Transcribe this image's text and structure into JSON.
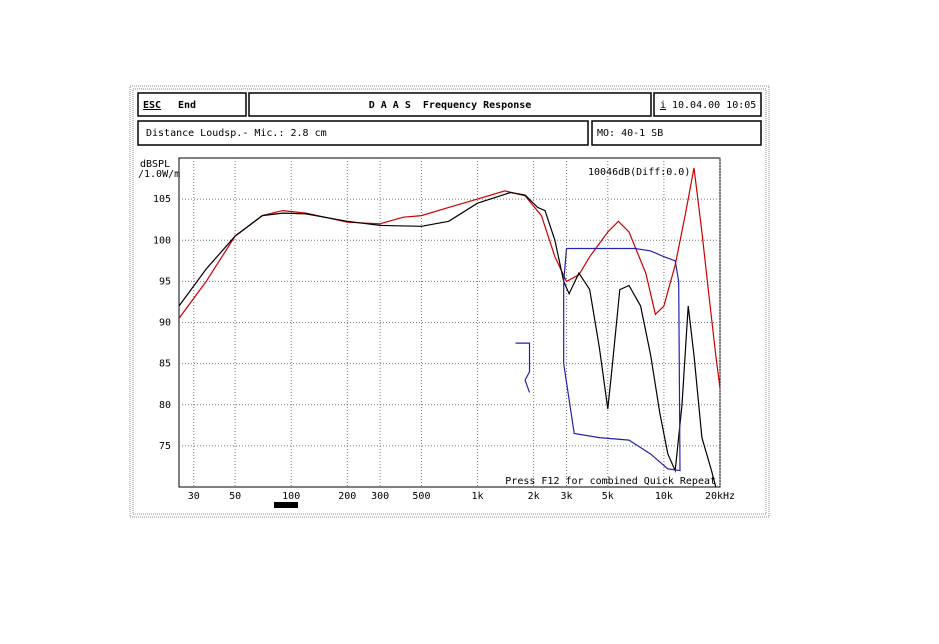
{
  "header": {
    "esc": "ESC",
    "end": "End",
    "title": "D A A S  Frequency Response",
    "info": "i",
    "date": "10.04.00 10:05",
    "distance": "Distance Loudsp.- Mic.: 2.8 cm",
    "model": "MO: 40-1 SB"
  },
  "chart_data": {
    "type": "line",
    "y_label_1": "dBSPL",
    "y_label_2": "/1.0W/m",
    "top_note": "10046dB(Diff:0.0)",
    "annotation": "Press F12 for combined Quick Repeat",
    "x_log": true,
    "grid": true,
    "xlim": [
      25,
      20000
    ],
    "ylim": [
      70,
      110
    ],
    "xticks": [
      30,
      50,
      100,
      200,
      300,
      500,
      {
        "value": 1000,
        "label": "1k"
      },
      {
        "value": 2000,
        "label": "2k"
      },
      {
        "value": 3000,
        "label": "3k"
      },
      {
        "value": 5000,
        "label": "5k"
      },
      {
        "value": 10000,
        "label": "10k"
      },
      {
        "value": 20000,
        "label": "20kHz"
      }
    ],
    "yticks": [
      75,
      80,
      85,
      90,
      95,
      100,
      105
    ],
    "series": [
      {
        "color": "#cc0000",
        "x": [
          25,
          35,
          50,
          70,
          90,
          120,
          200,
          300,
          400,
          500,
          700,
          1000,
          1400,
          1800,
          2200,
          2600,
          3000,
          3500,
          4000,
          5000,
          5700,
          6500,
          8000,
          9000,
          10000,
          11500,
          13000,
          14500,
          16000,
          17500,
          19000,
          20000
        ],
        "values": [
          90.5,
          95,
          100.5,
          103,
          103.6,
          103.3,
          102.2,
          102,
          102.8,
          103,
          104,
          105,
          106,
          105.4,
          103,
          98,
          95,
          95.8,
          98,
          101,
          102.3,
          101,
          96,
          91,
          92,
          97,
          103,
          108.8,
          101,
          93,
          86,
          82
        ]
      },
      {
        "color": "#000000",
        "x": [
          25,
          35,
          50,
          70,
          90,
          120,
          200,
          300,
          500,
          700,
          1000,
          1500,
          1800,
          2100,
          2300,
          2600,
          2900,
          3100,
          3500,
          4000,
          4500,
          5000,
          5300,
          5800,
          6500,
          7500,
          8500,
          9500,
          10500,
          11500,
          12500,
          13500,
          14500,
          16000,
          18000,
          19000
        ],
        "values": [
          92,
          96.5,
          100.5,
          103,
          103.3,
          103.2,
          102.3,
          101.8,
          101.7,
          102.3,
          104.5,
          105.8,
          105.5,
          104,
          103.6,
          100,
          95,
          93.5,
          96,
          94,
          87,
          79.5,
          85,
          94,
          94.5,
          92,
          86,
          79,
          74,
          72,
          80,
          92,
          86,
          76,
          72,
          70
        ]
      },
      {
        "color": "#2222aa",
        "x": [
          1600,
          1900,
          1900,
          1800,
          1900,
          null,
          3000,
          5000,
          7000,
          8500,
          10000,
          11500,
          12000,
          12200,
          10500,
          8500,
          6500,
          4500,
          3300,
          2900,
          2900,
          3000
        ],
        "values": [
          87.5,
          87.5,
          84,
          83,
          81.5,
          null,
          99,
          99,
          99,
          98.7,
          98,
          97.5,
          95,
          72,
          72.2,
          74,
          75.7,
          76,
          76.5,
          85,
          95,
          99
        ]
      }
    ]
  }
}
